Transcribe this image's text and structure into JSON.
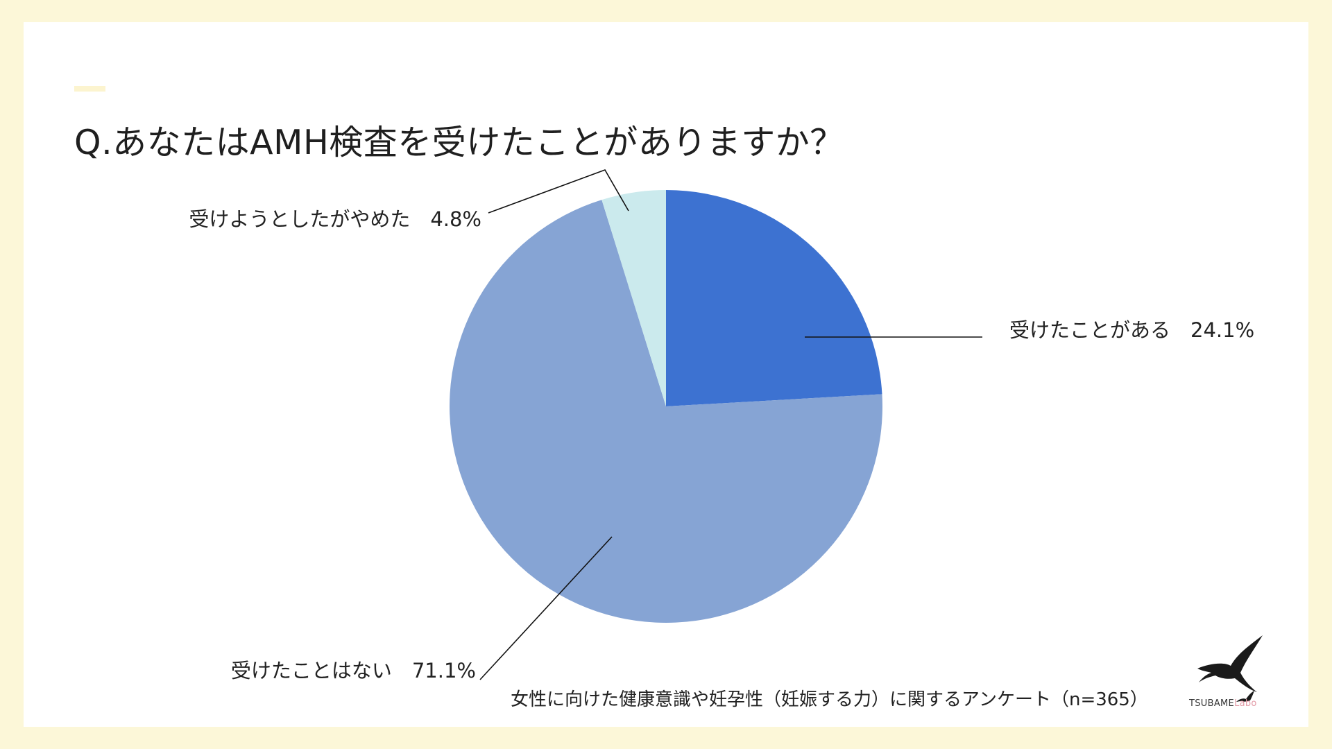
{
  "title": "Q.あなたはAMH検査を受けたことがありますか？",
  "source_note": "女性に向けた健康意識や妊孕性（妊娠する力）に関するアンケート（n=365）",
  "logo": {
    "brand": "TSUBAME",
    "suffix": "Labo",
    "icon": "swallow-icon"
  },
  "colors": {
    "background": "#fcf7d8",
    "card": "#ffffff"
  },
  "chart_data": {
    "type": "pie",
    "title": "Q.あなたはAMH検査を受けたことがありますか？",
    "slices": [
      {
        "label": "受けたことがある",
        "value": 24.1,
        "display": "24.1%",
        "color": "#3d72d1"
      },
      {
        "label": "受けたことはない",
        "value": 71.1,
        "display": "71.1%",
        "color": "#86a4d4"
      },
      {
        "label": "受けようとしたがやめた",
        "value": 4.8,
        "display": "4.8%",
        "color": "#cbeaed"
      }
    ],
    "start_angle": "12 o'clock",
    "direction": "clockwise"
  }
}
